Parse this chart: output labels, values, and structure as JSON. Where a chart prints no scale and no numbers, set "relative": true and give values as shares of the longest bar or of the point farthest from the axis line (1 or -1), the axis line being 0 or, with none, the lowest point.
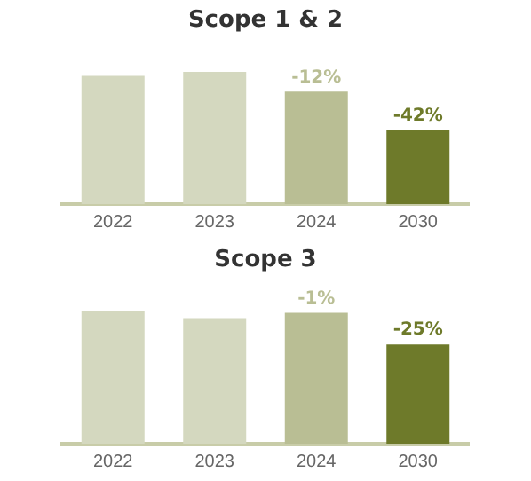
{
  "chart_data": [
    {
      "type": "bar",
      "title": "Scope 1 & 2",
      "categories": [
        "2022",
        "2023",
        "2024",
        "2030"
      ],
      "relative": true,
      "values": [
        0.97,
        1,
        0.85,
        0.56
      ],
      "colors": [
        "#d4d8bf",
        "#d4d8bf",
        "#b9be94",
        "#6e7a2a"
      ],
      "annotations": [
        {
          "text": "-12%",
          "x": "2024",
          "y": 0.85
        },
        {
          "text": "-42%",
          "x": "2030",
          "y": 0.56
        }
      ],
      "grid": false,
      "legend": false,
      "tick_labels": "x"
    },
    {
      "type": "bar",
      "title": "Scope 3",
      "categories": [
        "2022",
        "2023",
        "2024",
        "2030"
      ],
      "relative": true,
      "values": [
        1,
        0.95,
        0.99,
        0.75
      ],
      "colors": [
        "#d4d8bf",
        "#d4d8bf",
        "#b9be94",
        "#6e7a2a"
      ],
      "annotations": [
        {
          "text": "-1%",
          "x": "2024",
          "y": 0.99
        },
        {
          "text": "-25%",
          "x": "2030",
          "y": 0.75
        }
      ],
      "grid": false,
      "legend": false,
      "tick_labels": "x"
    }
  ]
}
